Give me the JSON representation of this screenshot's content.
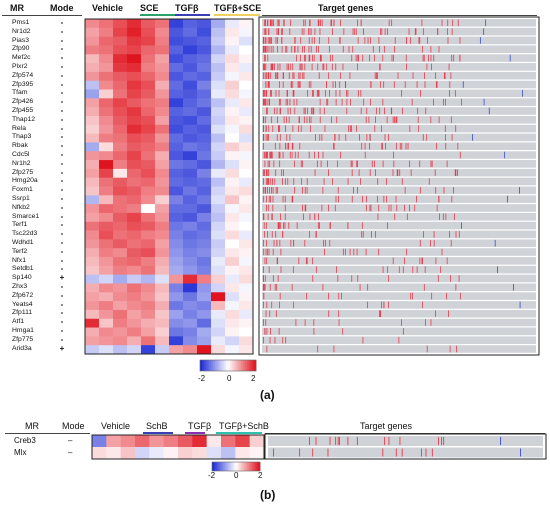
{
  "panel_a": {
    "label": "(a)",
    "headers": {
      "mr": "MR",
      "mode": "Mode",
      "target": "Target genes"
    },
    "groups": [
      {
        "label": "Vehicle",
        "color": "#ffffff"
      },
      {
        "label": "SCE",
        "color": "#2aa36b"
      },
      {
        "label": "TGFβ",
        "color": "#3a3fb8"
      },
      {
        "label": "TGFβ+SCE",
        "color": "#f0d060"
      }
    ],
    "regulators": [
      "Pms1",
      "Nr1d2",
      "Pias3",
      "Zfp90",
      "Mef2c",
      "Plxr2",
      "Zfp574",
      "Zfp395",
      "Tfam",
      "Zfp426",
      "Zfp455",
      "Thap12",
      "Rela",
      "Thap3",
      "Rbak",
      "Cdc5l",
      "Nr1h2",
      "Zfp275",
      "Hmg20a",
      "Foxm1",
      "Ssrp1",
      "Nfkb2",
      "Smarce1",
      "Terf1",
      "Tsc22d3",
      "Wdhd1",
      "Terf2",
      "Nfx1",
      "Setdb1",
      "Sp140",
      "Zhx3",
      "Zfp672",
      "Yeats4",
      "Zfp111",
      "Atf1",
      "Hmga1",
      "Zfp775",
      "Arid3a"
    ],
    "modes": [
      "-",
      "-",
      "-",
      "-",
      "-",
      "-",
      "-",
      "-",
      "-",
      "-",
      "-",
      "-",
      "-",
      "-",
      "-",
      "-",
      "-",
      "-",
      "-",
      "-",
      "-",
      "-",
      "-",
      "-",
      "-",
      "-",
      "-",
      "-",
      "-",
      "+",
      "-",
      "-",
      "-",
      "-",
      "-",
      "-",
      "-",
      "+"
    ],
    "colorbar": {
      "ticks": [
        "-2",
        "0",
        "2"
      ]
    }
  },
  "panel_b": {
    "label": "(b)",
    "headers": {
      "mr": "MR",
      "mode": "Mode",
      "target": "Target genes"
    },
    "groups": [
      {
        "label": "Vehicle",
        "color": "#ffffff"
      },
      {
        "label": "SchB",
        "color": "#3a3fb8"
      },
      {
        "label": "TGFβ",
        "color": "#8a2fb0"
      },
      {
        "label": "TGFβ+SchB",
        "color": "#30c0b0"
      }
    ],
    "regulators": [
      "Creb3",
      "Mlx"
    ],
    "modes": [
      "–",
      "–"
    ],
    "colorbar": {
      "ticks": [
        "-2",
        "0",
        "2"
      ]
    }
  },
  "chart_data": [
    {
      "type": "heatmap",
      "panel": "a",
      "rows": [
        "Pms1",
        "Nr1d2",
        "Pias3",
        "Zfp90",
        "Mef2c",
        "Plxr2",
        "Zfp574",
        "Zfp395",
        "Tfam",
        "Zfp426",
        "Zfp455",
        "Thap12",
        "Rela",
        "Thap3",
        "Rbak",
        "Cdc5l",
        "Nr1h2",
        "Zfp275",
        "Hmg20a",
        "Foxm1",
        "Ssrp1",
        "Nfkb2",
        "Smarce1",
        "Terf1",
        "Tsc22d3",
        "Wdhd1",
        "Terf2",
        "Nfx1",
        "Setdb1",
        "Sp140",
        "Zhx3",
        "Zfp672",
        "Yeats4",
        "Zfp111",
        "Atf1",
        "Hmga1",
        "Zfp775",
        "Arid3a"
      ],
      "columns": [
        "Vehicle",
        "Vehicle",
        "Vehicle",
        "SCE",
        "SCE",
        "SCE",
        "TGFβ",
        "TGFβ",
        "TGFβ",
        "TGFβ+SCE",
        "TGFβ+SCE",
        "TGFβ+SCE"
      ],
      "values": [
        [
          1.0,
          1.2,
          1.5,
          1.8,
          1.4,
          1.2,
          -1.8,
          -1.5,
          -1.6,
          -0.8,
          -0.2,
          0.1
        ],
        [
          0.8,
          1.1,
          1.6,
          1.9,
          1.5,
          1.0,
          -1.6,
          -1.4,
          -1.7,
          -0.6,
          0.2,
          -0.1
        ],
        [
          0.9,
          1.3,
          1.4,
          1.7,
          1.6,
          1.1,
          -1.7,
          -1.6,
          -1.5,
          -0.5,
          0.1,
          -0.3
        ],
        [
          1.1,
          1.2,
          1.5,
          1.6,
          1.3,
          1.2,
          -1.5,
          -1.8,
          -1.6,
          -0.7,
          -0.2,
          0.0
        ],
        [
          0.6,
          1.0,
          1.8,
          2.0,
          1.2,
          0.8,
          -1.7,
          -1.5,
          -1.4,
          -0.4,
          0.3,
          0.1
        ],
        [
          0.7,
          0.9,
          1.7,
          1.8,
          1.1,
          0.9,
          -1.4,
          -1.6,
          -1.3,
          -0.6,
          0.2,
          -0.2
        ],
        [
          0.9,
          1.2,
          1.4,
          1.5,
          1.3,
          1.0,
          -1.6,
          -1.4,
          -1.5,
          -0.5,
          -0.1,
          0.2
        ],
        [
          -0.6,
          1.0,
          1.3,
          1.7,
          1.5,
          0.7,
          -1.4,
          -1.7,
          -1.2,
          -0.3,
          0.4,
          0.0
        ],
        [
          -0.9,
          0.4,
          1.2,
          1.6,
          1.4,
          0.9,
          -1.5,
          -1.6,
          -1.4,
          -0.2,
          0.3,
          -0.1
        ],
        [
          0.8,
          1.3,
          1.6,
          1.4,
          1.2,
          1.1,
          -1.8,
          -1.5,
          -1.3,
          -0.6,
          -0.2,
          0.2
        ],
        [
          0.7,
          1.2,
          1.5,
          1.7,
          1.3,
          1.0,
          -1.5,
          -1.4,
          -1.6,
          -0.4,
          0.1,
          -0.2
        ],
        [
          0.5,
          1.0,
          1.4,
          1.6,
          1.5,
          0.8,
          -1.6,
          -1.7,
          -1.4,
          -0.5,
          0.2,
          0.1
        ],
        [
          0.4,
          0.9,
          1.3,
          1.8,
          1.6,
          1.2,
          -1.7,
          -1.5,
          -1.6,
          -0.3,
          -0.1,
          0.3
        ],
        [
          0.6,
          1.1,
          1.2,
          1.5,
          1.4,
          0.9,
          -1.4,
          -1.6,
          -1.5,
          -0.6,
          0.0,
          -0.3
        ],
        [
          -0.8,
          0.3,
          1.1,
          1.4,
          1.3,
          1.1,
          -1.5,
          -1.3,
          -1.4,
          -0.4,
          0.4,
          0.2
        ],
        [
          0.9,
          1.0,
          1.3,
          1.6,
          1.2,
          0.7,
          -1.6,
          -1.8,
          -1.3,
          -0.5,
          0.1,
          -0.1
        ],
        [
          0.7,
          2.0,
          1.1,
          1.5,
          1.4,
          0.8,
          -1.3,
          -1.4,
          -1.6,
          -0.7,
          -0.3,
          0.1
        ],
        [
          0.8,
          1.6,
          0.2,
          1.3,
          1.5,
          1.0,
          -1.5,
          -1.6,
          -1.2,
          -0.2,
          0.3,
          0.0
        ],
        [
          0.6,
          1.2,
          1.4,
          1.2,
          1.3,
          0.9,
          -1.4,
          -1.5,
          -1.4,
          -0.6,
          0.1,
          -0.2
        ],
        [
          0.5,
          1.1,
          1.5,
          1.4,
          1.1,
          1.0,
          -1.6,
          -1.3,
          -1.5,
          -0.4,
          0.2,
          0.3
        ],
        [
          -0.7,
          0.6,
          1.2,
          1.3,
          1.0,
          0.4,
          -1.2,
          -1.5,
          -1.3,
          -0.3,
          0.5,
          0.1
        ],
        [
          0.9,
          1.3,
          1.2,
          1.1,
          0.0,
          0.8,
          -1.4,
          -1.4,
          -1.6,
          -0.5,
          -0.1,
          0.2
        ],
        [
          0.8,
          1.0,
          1.4,
          1.6,
          1.2,
          0.9,
          -1.5,
          -1.6,
          -1.2,
          -0.6,
          0.2,
          -0.1
        ],
        [
          1.2,
          1.4,
          1.3,
          1.5,
          1.4,
          1.1,
          -1.3,
          -1.2,
          -1.4,
          -0.4,
          0.1,
          0.0
        ],
        [
          1.0,
          1.5,
          1.2,
          1.3,
          1.1,
          1.0,
          -1.2,
          -1.4,
          -1.3,
          -0.3,
          0.3,
          -0.2
        ],
        [
          0.9,
          1.2,
          1.4,
          1.2,
          1.3,
          0.8,
          -1.1,
          -1.3,
          -1.2,
          -0.5,
          0.0,
          0.2
        ],
        [
          0.7,
          1.1,
          1.0,
          1.4,
          1.5,
          0.9,
          -1.0,
          -1.2,
          -1.1,
          -0.4,
          0.2,
          0.1
        ],
        [
          0.6,
          0.9,
          1.2,
          1.3,
          1.1,
          0.7,
          -0.9,
          -1.1,
          -1.3,
          -0.2,
          0.4,
          -0.1
        ],
        [
          0.5,
          0.8,
          1.1,
          1.0,
          1.2,
          0.6,
          -0.8,
          -1.0,
          -1.2,
          -0.3,
          0.1,
          0.2
        ],
        [
          -0.6,
          -0.4,
          -0.8,
          -0.5,
          -0.7,
          -0.3,
          0.9,
          1.8,
          1.1,
          0.4,
          -0.2,
          0.3
        ],
        [
          0.7,
          1.0,
          0.9,
          1.2,
          1.0,
          0.6,
          -1.2,
          -1.9,
          -1.0,
          -0.4,
          0.2,
          -0.1
        ],
        [
          0.8,
          0.7,
          1.0,
          1.1,
          0.9,
          0.5,
          -1.0,
          -1.3,
          -0.9,
          2.0,
          -0.3,
          0.1
        ],
        [
          0.9,
          1.1,
          0.8,
          1.0,
          1.1,
          0.7,
          -1.3,
          -1.1,
          -1.2,
          0.6,
          -0.1,
          0.2
        ],
        [
          0.6,
          0.9,
          1.2,
          0.8,
          1.0,
          0.5,
          -0.9,
          -1.2,
          -1.0,
          -0.2,
          0.3,
          -0.2
        ],
        [
          1.8,
          0.5,
          1.1,
          0.9,
          0.7,
          0.6,
          -1.1,
          -1.0,
          -1.4,
          -0.3,
          0.2,
          0.1
        ],
        [
          0.7,
          1.0,
          0.9,
          1.1,
          0.8,
          0.4,
          -1.3,
          -1.2,
          -0.8,
          -0.4,
          0.1,
          0.0
        ],
        [
          0.8,
          0.9,
          1.0,
          0.7,
          1.2,
          0.6,
          -1.8,
          -1.1,
          -0.9,
          -0.2,
          -0.4,
          0.3
        ],
        [
          -0.5,
          -0.3,
          -0.6,
          -0.4,
          -1.8,
          -0.5,
          0.8,
          1.0,
          2.0,
          0.3,
          -0.1,
          0.2
        ]
      ],
      "color_range": [
        -2,
        2
      ],
      "colors": {
        "low": "#1f2dd6",
        "mid": "#ffffff",
        "high": "#e0141e"
      }
    },
    {
      "type": "heatmap",
      "panel": "b",
      "rows": [
        "Creb3",
        "Mlx"
      ],
      "columns": [
        "Vehicle",
        "Vehicle",
        "Vehicle",
        "SchB",
        "SchB",
        "SchB",
        "TGFβ",
        "TGFβ",
        "TGFβ",
        "TGFβ+SchB",
        "TGFβ+SchB",
        "TGFβ+SchB"
      ],
      "values": [
        [
          -1.2,
          0.8,
          1.0,
          1.3,
          0.9,
          1.1,
          1.4,
          1.8,
          0.2,
          1.2,
          1.6,
          0.4
        ],
        [
          0.3,
          0.2,
          0.5,
          -0.4,
          -0.2,
          0.1,
          0.4,
          0.3,
          -0.3,
          -0.6,
          0.2,
          0.1
        ]
      ],
      "color_range": [
        -2,
        2
      ],
      "colors": {
        "low": "#1f2dd6",
        "mid": "#ffffff",
        "high": "#e0141e"
      }
    }
  ]
}
